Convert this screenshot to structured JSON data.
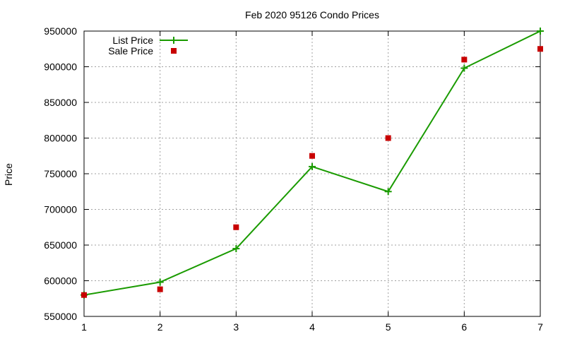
{
  "chart_data": {
    "type": "line",
    "title": "Feb 2020 95126 Condo Prices",
    "xlabel": "",
    "ylabel": "Price",
    "xlim": [
      1,
      7
    ],
    "ylim": [
      550000,
      950000
    ],
    "x_ticks": [
      1,
      2,
      3,
      4,
      5,
      6,
      7
    ],
    "y_ticks": [
      550000,
      600000,
      650000,
      700000,
      750000,
      800000,
      850000,
      900000,
      950000
    ],
    "grid": true,
    "legend_position": "top-left",
    "series": [
      {
        "name": "List Price",
        "style": "line+cross",
        "color": "#1a9b00",
        "x": [
          1,
          2,
          3,
          4,
          5,
          6,
          7
        ],
        "values": [
          580000,
          598000,
          645000,
          760000,
          725000,
          898000,
          950000
        ]
      },
      {
        "name": "Sale Price",
        "style": "square-markers",
        "color": "#c80000",
        "x": [
          1,
          2,
          3,
          4,
          5,
          6,
          7
        ],
        "values": [
          580000,
          588000,
          675000,
          775000,
          800000,
          910000,
          925000
        ]
      }
    ]
  }
}
